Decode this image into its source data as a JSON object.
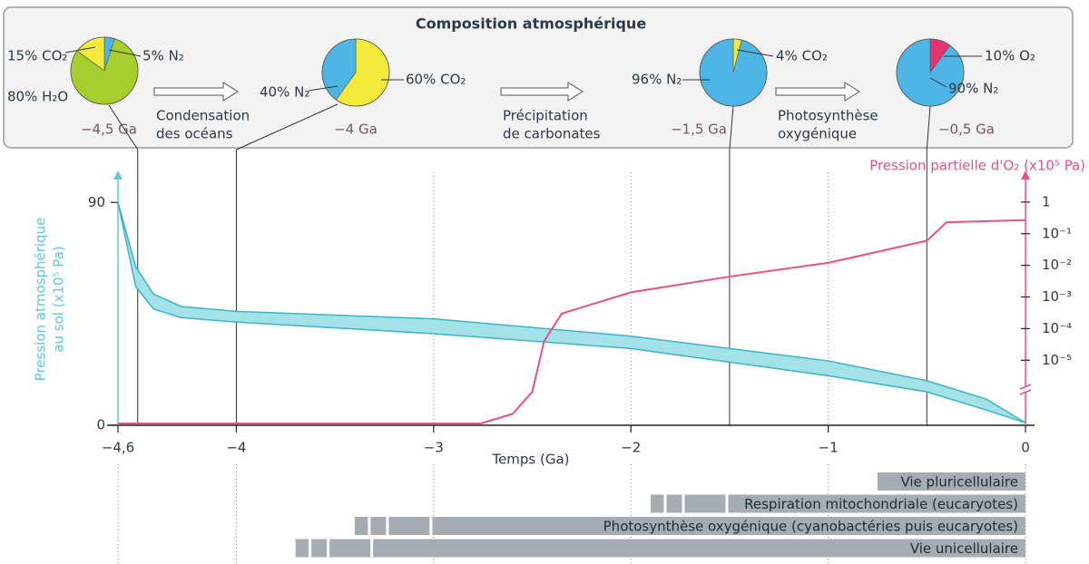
{
  "composition": {
    "title": "Composition atmosphérique",
    "pies": [
      {
        "time": -4.5,
        "time_label": "−4,5 Ga",
        "slices": [
          {
            "value": 5,
            "label": "5% N₂",
            "color": "#4eb6e6"
          },
          {
            "value": 80,
            "label": "80% H₂O",
            "color": "#a6ce2c"
          },
          {
            "value": 15,
            "label": "15% CO₂",
            "color": "#f3ea3c"
          }
        ]
      },
      {
        "time": -4,
        "time_label": "−4 Ga",
        "slices": [
          {
            "value": 60,
            "label": "60% CO₂",
            "color": "#f3ea3c"
          },
          {
            "value": 40,
            "label": "40% N₂",
            "color": "#4eb6e6"
          }
        ]
      },
      {
        "time": -1.5,
        "time_label": "−1,5 Ga",
        "slices": [
          {
            "value": 4,
            "label": "4% CO₂",
            "color": "#f3ea3c"
          },
          {
            "value": 96,
            "label": "96% N₂",
            "color": "#4eb6e6"
          }
        ]
      },
      {
        "time": -0.5,
        "time_label": "−0,5 Ga",
        "slices": [
          {
            "value": 10,
            "label": "10% O₂",
            "color": "#e8336e"
          },
          {
            "value": 90,
            "label": "90% N₂",
            "color": "#4eb6e6"
          }
        ]
      }
    ],
    "transitions": [
      [
        "Condensation",
        "des océans"
      ],
      [
        "Précipitation",
        "de carbonates"
      ],
      [
        "Photosynthèse",
        "oxygénique"
      ]
    ]
  },
  "chart_data": {
    "type": "line",
    "xlabel": "Temps (Ga)",
    "ylabel": [
      "Pression atmosphérique",
      "au sol (x10⁵ Pa)"
    ],
    "y2label": "Pression partielle d'O₂ (x10⁵ Pa)",
    "xlim": [
      -4.6,
      0
    ],
    "xticks": [
      {
        "value": -4.6,
        "label": "−4,6"
      },
      {
        "value": -4,
        "label": "−4"
      },
      {
        "value": -3,
        "label": "−3"
      },
      {
        "value": -2,
        "label": "−2"
      },
      {
        "value": -1,
        "label": "−1"
      },
      0
    ],
    "ylim": [
      0,
      100
    ],
    "yticks": [
      0,
      90
    ],
    "y2lim": [
      1e-07,
      10
    ],
    "y2scale": "log",
    "y2ticks": [
      1,
      {
        "value": 0.1,
        "label": "10⁻¹"
      },
      {
        "value": 0.01,
        "label": "10⁻²"
      },
      {
        "value": 0.001,
        "label": "10⁻³"
      },
      {
        "value": 0.0001,
        "label": "10⁻⁴"
      },
      {
        "value": 1e-05,
        "label": "10⁻⁵"
      }
    ],
    "band": {
      "color": "#3ab5c5",
      "fill": "#a3e2e8",
      "x": [
        -4.6,
        -4.51,
        -4.42,
        -4.28,
        -4,
        -3,
        -2,
        -1,
        -0.5,
        -0.2,
        0
      ],
      "upper": [
        90,
        64,
        53,
        48,
        46,
        43,
        36,
        26,
        18,
        10.6,
        1
      ],
      "lower": [
        90,
        56,
        47,
        43.5,
        41.7,
        37,
        31,
        20,
        13.5,
        6.2,
        1
      ]
    },
    "series": [
      {
        "color": "#e8508a",
        "axis": "y2",
        "x": [
          -4.6,
          -2.76,
          -2.6,
          -2.5,
          -2.44,
          -2.35,
          -2,
          -1.5,
          -1,
          -0.5,
          -0.4,
          0
        ],
        "values": [
          1e-07,
          1e-07,
          2e-07,
          1e-06,
          4e-05,
          0.0003,
          0.0014,
          0.0044,
          0.012,
          0.06,
          0.23,
          0.27
        ]
      }
    ],
    "timeline_color": "#a5adb3",
    "timeline": [
      {
        "label": "Vie pluricellulaire",
        "span": [
          -0.75,
          0
        ]
      },
      {
        "label": "Respiration mitochondriale (eucaryotes)",
        "span": [
          -1.9,
          0
        ]
      },
      {
        "label": "Photosynthèse oxygénique (cyanobactéries puis eucaryotes)",
        "span": [
          -3.4,
          0
        ]
      },
      {
        "label": "Vie unicellulaire",
        "span": [
          -3.7,
          0
        ]
      }
    ]
  }
}
